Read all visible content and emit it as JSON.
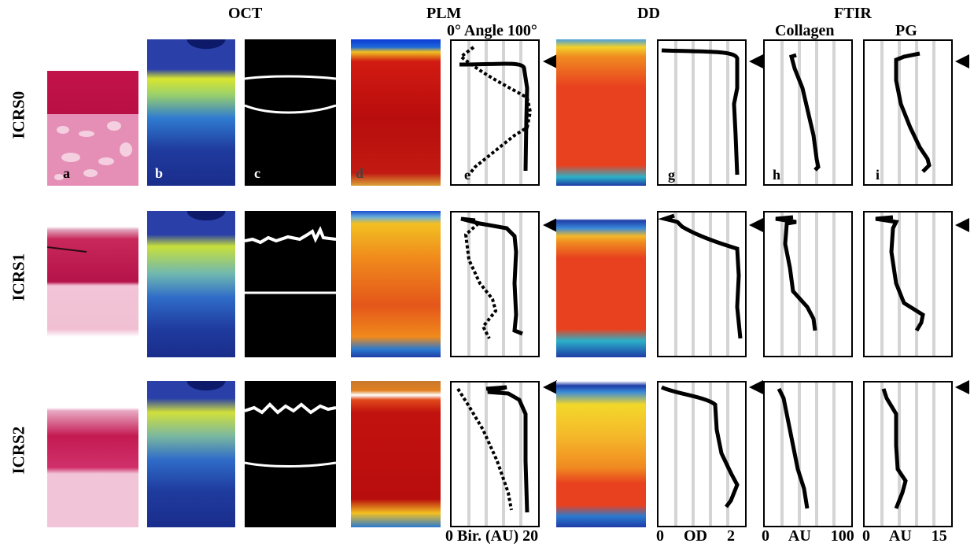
{
  "headers": {
    "oct": "OCT",
    "plm": "PLM",
    "dd": "DD",
    "ftir": "FTIR",
    "angle": "0°  Angle  100°",
    "collagen": "Collagen",
    "pg": "PG"
  },
  "rows": [
    "ICRS0",
    "ICRS1",
    "ICRS2"
  ],
  "panel_letters": [
    "a",
    "b",
    "c",
    "d",
    "e",
    "",
    "g",
    "h",
    "i"
  ],
  "axis_labels": {
    "bir": "0 Bir. (AU) 20",
    "od": "0     OD     2",
    "collagen_au": "0     AU     100",
    "pg_au": "0     AU     15"
  },
  "colors": {
    "histo_pink": "#e58fb6",
    "histo_red": "#c2134a",
    "oct_blue": "#1a2d8c",
    "oct_yellow": "#e5ec2a",
    "plm_red": "#c60f0f",
    "dd_red": "#e8411f",
    "gridline": "#d4d4d4"
  },
  "icons": [
    "triangle-marker-icon"
  ]
}
